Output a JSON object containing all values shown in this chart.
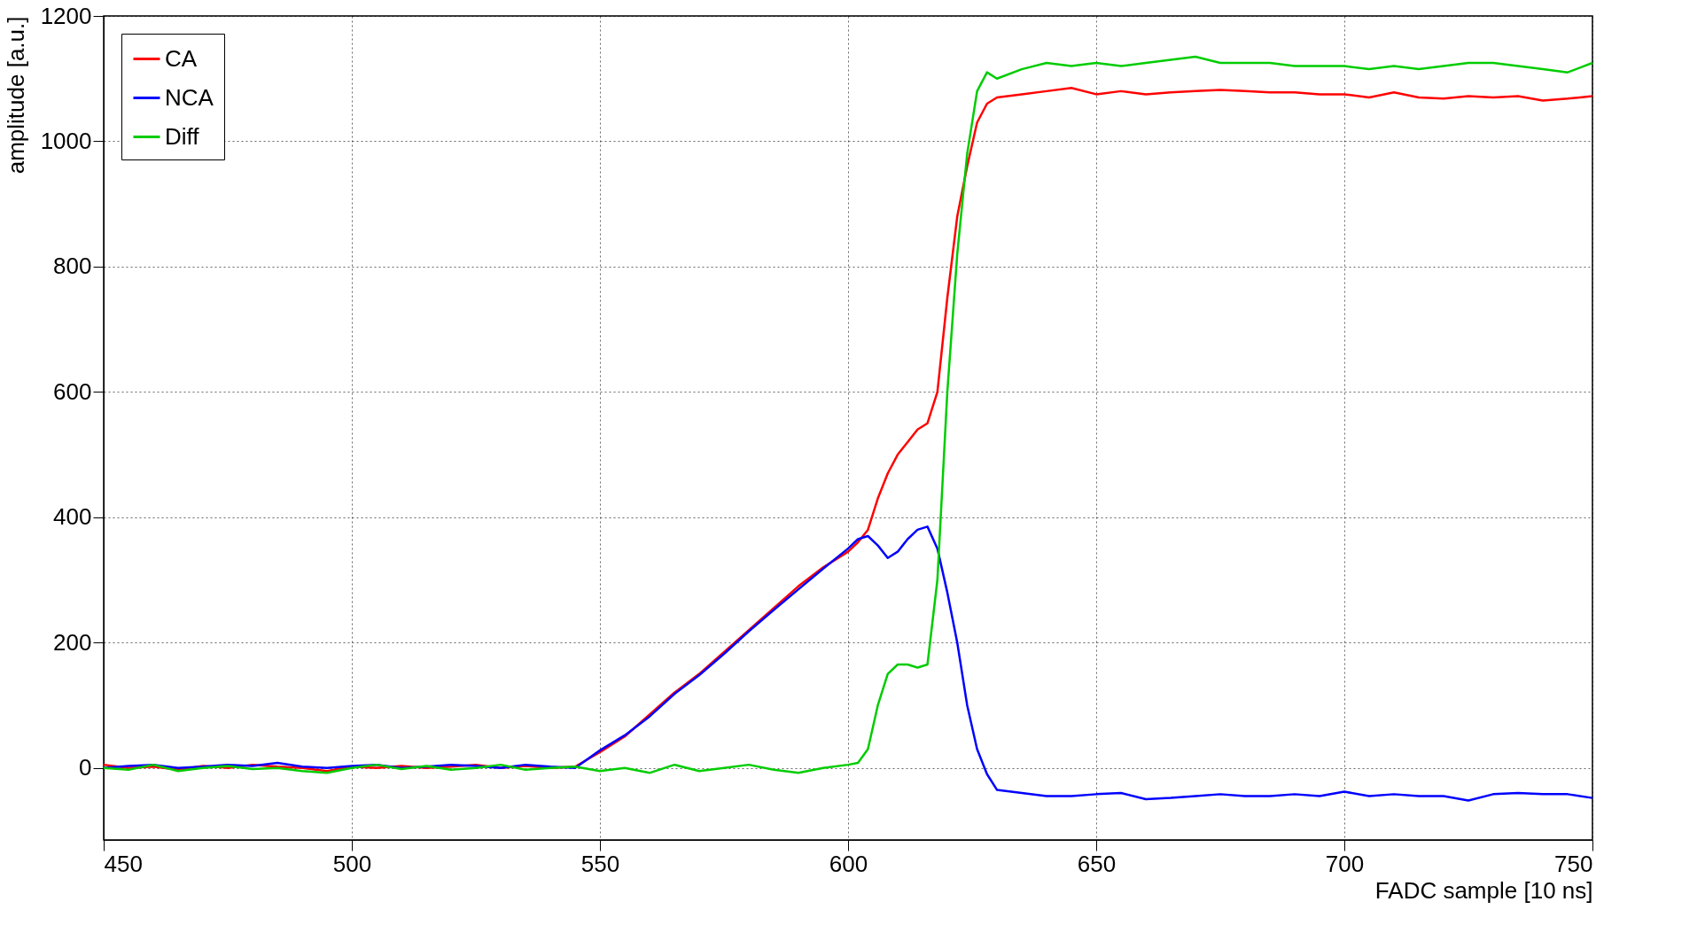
{
  "chart_data": {
    "type": "line",
    "xlabel": "FADC sample [10 ns]",
    "ylabel": "amplitude [a.u.]",
    "x": [
      450,
      455,
      460,
      465,
      470,
      475,
      480,
      485,
      490,
      495,
      500,
      505,
      510,
      515,
      520,
      525,
      530,
      535,
      540,
      545,
      550,
      555,
      560,
      565,
      570,
      575,
      580,
      585,
      590,
      595,
      600,
      602,
      604,
      606,
      608,
      610,
      612,
      614,
      616,
      618,
      620,
      622,
      624,
      626,
      628,
      630,
      635,
      640,
      645,
      650,
      655,
      660,
      665,
      670,
      675,
      680,
      685,
      690,
      695,
      700,
      705,
      710,
      715,
      720,
      725,
      730,
      735,
      740,
      745,
      750
    ],
    "series": [
      {
        "name": "CA",
        "color": "#ff0000",
        "values": [
          5,
          0,
          2,
          -3,
          3,
          0,
          5,
          2,
          0,
          -5,
          2,
          0,
          3,
          0,
          2,
          5,
          0,
          3,
          0,
          2,
          25,
          50,
          85,
          120,
          150,
          185,
          220,
          255,
          290,
          320,
          345,
          360,
          380,
          430,
          470,
          500,
          520,
          540,
          550,
          600,
          750,
          880,
          960,
          1030,
          1060,
          1070,
          1075,
          1080,
          1085,
          1075,
          1080,
          1075,
          1078,
          1080,
          1082,
          1080,
          1078,
          1078,
          1075,
          1075,
          1070,
          1078,
          1070,
          1068,
          1072,
          1070,
          1072,
          1065,
          1068,
          1072
        ]
      },
      {
        "name": "NCA",
        "color": "#0000ff",
        "values": [
          0,
          3,
          5,
          0,
          2,
          5,
          3,
          8,
          2,
          0,
          3,
          5,
          0,
          2,
          5,
          3,
          0,
          5,
          2,
          0,
          28,
          52,
          82,
          118,
          148,
          182,
          218,
          252,
          285,
          318,
          350,
          365,
          370,
          355,
          335,
          345,
          365,
          380,
          385,
          350,
          280,
          200,
          100,
          30,
          -10,
          -35,
          -40,
          -45,
          -45,
          -42,
          -40,
          -50,
          -48,
          -45,
          -42,
          -45,
          -45,
          -42,
          -45,
          -38,
          -45,
          -42,
          -45,
          -45,
          -52,
          -42,
          -40,
          -42,
          -42,
          -48
        ]
      },
      {
        "name": "Diff",
        "color": "#00cc00",
        "values": [
          0,
          -3,
          5,
          -5,
          0,
          3,
          -2,
          0,
          -5,
          -8,
          0,
          5,
          -2,
          3,
          -3,
          0,
          5,
          -3,
          0,
          2,
          -5,
          0,
          -8,
          5,
          -5,
          0,
          5,
          -3,
          -8,
          0,
          5,
          8,
          30,
          100,
          150,
          165,
          165,
          160,
          165,
          300,
          600,
          820,
          980,
          1080,
          1110,
          1100,
          1115,
          1125,
          1120,
          1125,
          1120,
          1125,
          1130,
          1135,
          1125,
          1125,
          1125,
          1120,
          1120,
          1120,
          1115,
          1120,
          1115,
          1120,
          1125,
          1125,
          1120,
          1115,
          1110,
          1125
        ]
      }
    ],
    "xlim": [
      450,
      750
    ],
    "xticks": [
      450,
      500,
      550,
      600,
      650,
      700,
      750
    ],
    "ylim": [
      -115,
      1200
    ],
    "yticks": [
      0,
      200,
      400,
      600,
      800,
      1000,
      1200
    ],
    "grid": true,
    "legend": "top left"
  }
}
